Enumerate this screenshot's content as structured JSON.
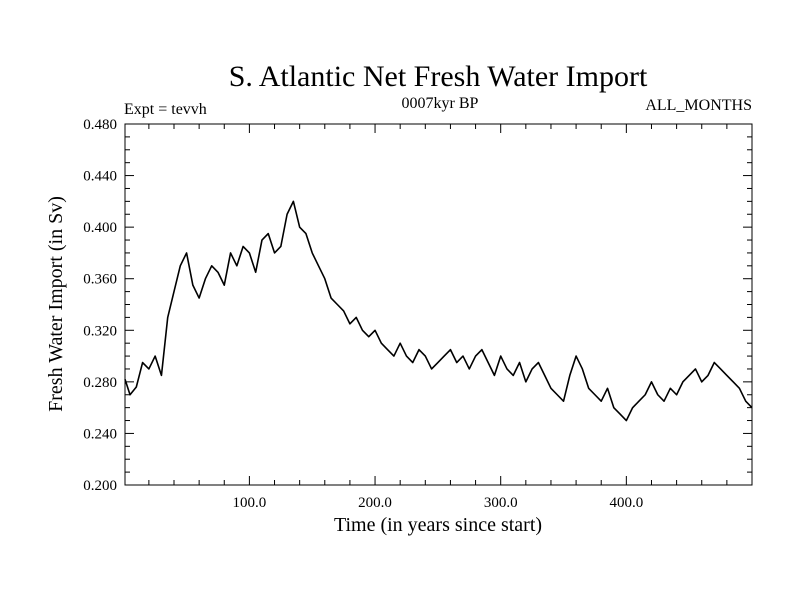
{
  "chart_data": {
    "type": "line",
    "title": "S. Atlantic Net Fresh Water Import",
    "subtitle_left": "Expt = tevvh",
    "subtitle_center": "0007kyr BP",
    "subtitle_right": "ALL_MONTHS",
    "xlabel": "Time (in years since start)",
    "ylabel": "Fresh Water Import (in Sv)",
    "xlim": [
      1,
      500
    ],
    "ylim": [
      0.2,
      0.48
    ],
    "x_ticks": [
      100,
      200,
      300,
      400
    ],
    "x_tick_labels": [
      "100.0",
      "200.0",
      "300.0",
      "400.0"
    ],
    "y_ticks": [
      0.2,
      0.24,
      0.28,
      0.32,
      0.36,
      0.4,
      0.44,
      0.48
    ],
    "y_tick_labels": [
      "0.200",
      "0.240",
      "0.280",
      "0.320",
      "0.360",
      "0.400",
      "0.440",
      "0.480"
    ],
    "grid": false,
    "color": "#000000",
    "series": [
      {
        "x": [
          1,
          5,
          10,
          15,
          20,
          25,
          30,
          35,
          40,
          45,
          50,
          55,
          60,
          65,
          70,
          75,
          80,
          85,
          90,
          95,
          100,
          105,
          110,
          115,
          120,
          125,
          130,
          135,
          140,
          145,
          150,
          155,
          160,
          165,
          170,
          175,
          180,
          185,
          190,
          195,
          200,
          205,
          210,
          215,
          220,
          225,
          230,
          235,
          240,
          245,
          250,
          255,
          260,
          265,
          270,
          275,
          280,
          285,
          290,
          295,
          300,
          305,
          310,
          315,
          320,
          325,
          330,
          335,
          340,
          345,
          350,
          355,
          360,
          365,
          370,
          375,
          380,
          385,
          390,
          395,
          400,
          405,
          410,
          415,
          420,
          425,
          430,
          435,
          440,
          445,
          450,
          455,
          460,
          465,
          470,
          475,
          480,
          485,
          490,
          495,
          500
        ],
        "values": [
          0.282,
          0.27,
          0.276,
          0.295,
          0.29,
          0.3,
          0.285,
          0.33,
          0.35,
          0.37,
          0.38,
          0.355,
          0.345,
          0.36,
          0.37,
          0.365,
          0.355,
          0.38,
          0.37,
          0.385,
          0.38,
          0.365,
          0.39,
          0.395,
          0.38,
          0.385,
          0.41,
          0.42,
          0.4,
          0.395,
          0.38,
          0.37,
          0.36,
          0.345,
          0.34,
          0.335,
          0.325,
          0.33,
          0.32,
          0.315,
          0.32,
          0.31,
          0.305,
          0.3,
          0.31,
          0.3,
          0.295,
          0.305,
          0.3,
          0.29,
          0.295,
          0.3,
          0.305,
          0.295,
          0.3,
          0.29,
          0.3,
          0.305,
          0.295,
          0.285,
          0.3,
          0.29,
          0.285,
          0.295,
          0.28,
          0.29,
          0.295,
          0.285,
          0.275,
          0.27,
          0.265,
          0.285,
          0.3,
          0.29,
          0.275,
          0.27,
          0.265,
          0.275,
          0.26,
          0.255,
          0.25,
          0.26,
          0.265,
          0.27,
          0.28,
          0.27,
          0.265,
          0.275,
          0.27,
          0.28,
          0.285,
          0.29,
          0.28,
          0.285,
          0.295,
          0.29,
          0.285,
          0.28,
          0.275,
          0.265,
          0.26
        ]
      }
    ]
  }
}
